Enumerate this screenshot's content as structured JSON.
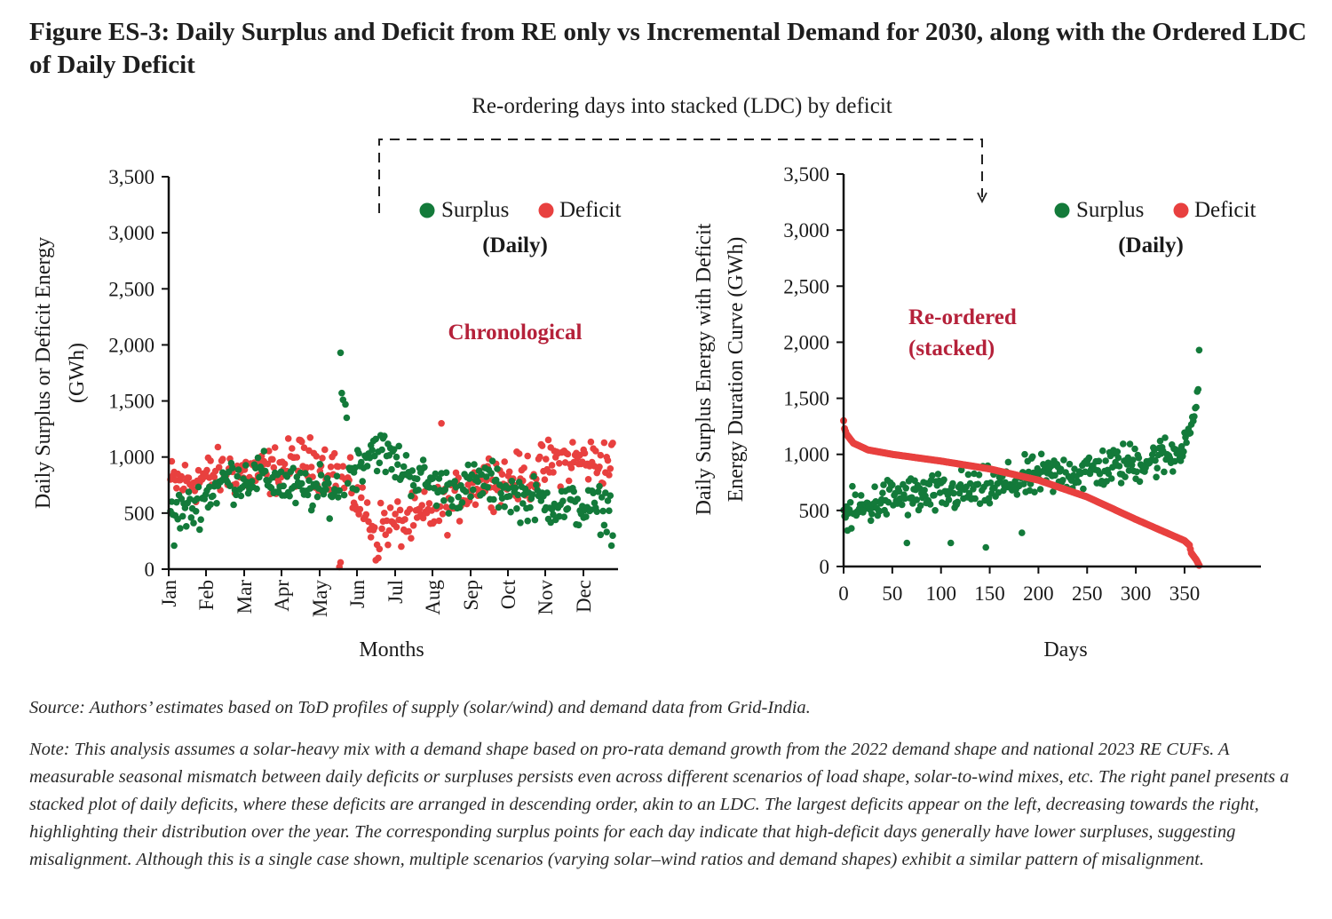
{
  "figure": {
    "title": "Figure ES-3: Daily Surplus and Deficit from RE only vs Incremental Demand for 2030, along with the Ordered LDC of Daily Deficit",
    "connector_label": "Re-ordering days into stacked (LDC) by deficit",
    "source": "Source: Authors’ estimates based on ToD profiles of supply (solar/wind) and demand data from Grid-India.",
    "note": "Note: This analysis assumes a solar-heavy mix with a demand shape based on pro-rata demand growth from the 2022 demand shape and national 2023 RE CUFs. A measurable seasonal mismatch between daily deficits or surpluses persists even across different scenarios of load shape, solar-to-wind mixes, etc. The right panel presents a stacked plot of daily deficits, where these deficits are arranged in descending order, akin to an LDC. The largest deficits appear on the left, decreasing towards the right, highlighting their distribution over the year. The corresponding surplus points for each day indicate that high-deficit days generally have lower surpluses, suggesting misalignment. Although this is a single case shown, multiple scenarios (varying solar–wind ratios and demand shapes) exhibit a similar pattern of misalignment."
  },
  "colors": {
    "surplus": "#137a3a",
    "deficit": "#e8403f",
    "annotation": "#b5213a"
  },
  "chart_data": [
    {
      "type": "scatter",
      "panel": "left",
      "annotation": "Chronological",
      "legend": {
        "items": [
          "Surplus",
          "Deficit"
        ],
        "subtitle": "(Daily)",
        "placement": "top-right"
      },
      "xlabel": "Months",
      "ylabel_lines": [
        "Daily Surplus or Deficit Energy",
        "(GWh)"
      ],
      "x_tick_labels": [
        "Jan",
        "Feb",
        "Mar",
        "Apr",
        "May",
        "Jun",
        "Jul",
        "Aug",
        "Sep",
        "Oct",
        "Nov",
        "Dec"
      ],
      "y_tick_labels": [
        "0",
        "500",
        "1,000",
        "1,500",
        "2,000",
        "2,500",
        "3,000",
        "3,500"
      ],
      "ylim": [
        0,
        3500
      ],
      "xlim_days": [
        1,
        365
      ],
      "grid": false,
      "series": [
        {
          "name": "Surplus",
          "monthly_profile_gwh": [
            520,
            800,
            830,
            700,
            700,
            1100,
            850,
            700,
            780,
            640,
            580,
            540
          ],
          "spread_gwh": 180,
          "notable_points": [
            {
              "day": 141,
              "value": 1930
            },
            {
              "day": 142,
              "value": 1570
            },
            {
              "day": 143,
              "value": 1510
            },
            {
              "day": 145,
              "value": 1470
            },
            {
              "day": 146,
              "value": 1350
            },
            {
              "day": 4,
              "value": 210
            },
            {
              "day": 364,
              "value": 210
            }
          ]
        },
        {
          "name": "Deficit",
          "monthly_profile_gwh": [
            780,
            870,
            850,
            970,
            900,
            380,
            420,
            560,
            820,
            800,
            980,
            960
          ],
          "spread_gwh": 200,
          "notable_points": [
            {
              "day": 140,
              "value": 20
            },
            {
              "day": 141,
              "value": 60
            },
            {
              "day": 170,
              "value": 80
            },
            {
              "day": 172,
              "value": 100
            },
            {
              "day": 224,
              "value": 1300
            }
          ]
        }
      ]
    },
    {
      "type": "scatter",
      "panel": "right",
      "annotation_lines": [
        "Re-ordered",
        "(stacked)"
      ],
      "legend": {
        "items": [
          "Surplus",
          "Deficit"
        ],
        "subtitle": "(Daily)",
        "placement": "top-right"
      },
      "xlabel": "Days",
      "ylabel_lines": [
        "Daily Surplus Energy with Deficit",
        "Energy Duration Curve (GWh)"
      ],
      "x_tick_labels": [
        "0",
        "50",
        "100",
        "150",
        "200",
        "250",
        "300",
        "350"
      ],
      "x_ticks": [
        0,
        50,
        100,
        150,
        200,
        250,
        300,
        350
      ],
      "y_tick_labels": [
        "0",
        "500",
        "1,000",
        "1,500",
        "2,000",
        "2,500",
        "3,000",
        "3,500"
      ],
      "ylim": [
        0,
        3500
      ],
      "xlim": [
        0,
        365
      ],
      "grid": false,
      "series": [
        {
          "name": "Deficit (sorted descending)",
          "anchor_points": [
            [
              0,
              1300
            ],
            [
              1,
              1230
            ],
            [
              3,
              1180
            ],
            [
              10,
              1100
            ],
            [
              25,
              1040
            ],
            [
              50,
              1000
            ],
            [
              100,
              940
            ],
            [
              150,
              870
            ],
            [
              200,
              770
            ],
            [
              250,
              620
            ],
            [
              300,
              420
            ],
            [
              350,
              230
            ],
            [
              355,
              190
            ],
            [
              357,
              120
            ],
            [
              362,
              60
            ],
            [
              365,
              10
            ]
          ]
        },
        {
          "name": "Surplus (same day)",
          "trend_points": [
            [
              0,
              450
            ],
            [
              50,
              620
            ],
            [
              100,
              640
            ],
            [
              150,
              700
            ],
            [
              200,
              800
            ],
            [
              250,
              850
            ],
            [
              300,
              930
            ],
            [
              340,
              1000
            ],
            [
              355,
              1200
            ],
            [
              362,
              1450
            ],
            [
              365,
              1930
            ]
          ],
          "spread_gwh": 170,
          "notable_points": [
            [
              65,
              210
            ],
            [
              110,
              210
            ],
            [
              146,
              170
            ],
            [
              183,
              300
            ],
            [
              365,
              1930
            ],
            [
              364,
              1580
            ],
            [
              363,
              1560
            ]
          ]
        }
      ]
    }
  ]
}
